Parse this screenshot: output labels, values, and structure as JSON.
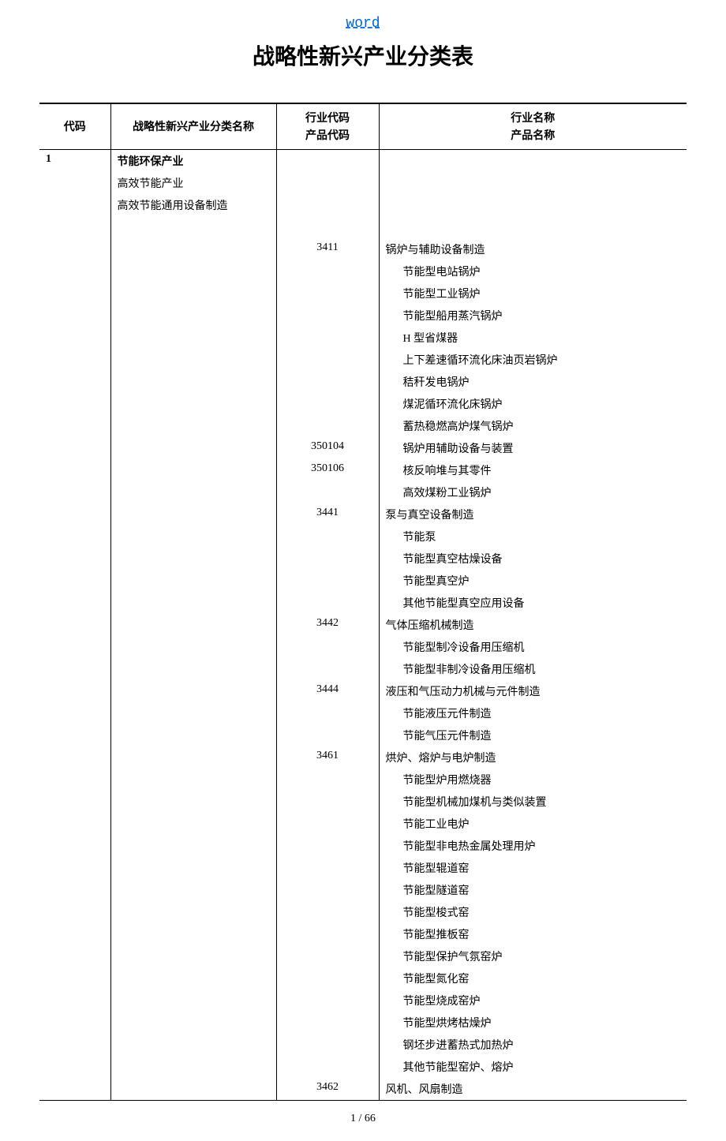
{
  "header_link": "word",
  "title": "战略性新兴产业分类表",
  "headers": {
    "code": "代码",
    "category_name": "战略性新兴产业分类名称",
    "industry_code_line1": "行业代码",
    "industry_code_line2": "产品代码",
    "industry_name_line1": "行业名称",
    "industry_name_line2": "产品名称"
  },
  "rows": [
    {
      "code": "1",
      "category": "节能环保产业",
      "category_bold": true,
      "industry_code": "",
      "industry_name": "",
      "indent": 0
    },
    {
      "code": "",
      "category": "高效节能产业",
      "category_bold": false,
      "industry_code": "",
      "industry_name": "",
      "indent": 0
    },
    {
      "code": "",
      "category": "高效节能通用设备制造",
      "category_bold": false,
      "industry_code": "",
      "industry_name": "",
      "indent": 0
    },
    {
      "code": "",
      "category": "",
      "category_bold": false,
      "industry_code": "",
      "industry_name": "",
      "indent": 0
    },
    {
      "code": "",
      "category": "",
      "category_bold": false,
      "industry_code": "3411",
      "industry_name": "锅炉与辅助设备制造",
      "indent": 0
    },
    {
      "code": "",
      "category": "",
      "category_bold": false,
      "industry_code": "",
      "industry_name": "节能型电站锅炉",
      "indent": 1
    },
    {
      "code": "",
      "category": "",
      "category_bold": false,
      "industry_code": "",
      "industry_name": "节能型工业锅炉",
      "indent": 1
    },
    {
      "code": "",
      "category": "",
      "category_bold": false,
      "industry_code": "",
      "industry_name": "节能型船用蒸汽锅炉",
      "indent": 1
    },
    {
      "code": "",
      "category": "",
      "category_bold": false,
      "industry_code": "",
      "industry_name": "H 型省煤器",
      "indent": 1
    },
    {
      "code": "",
      "category": "",
      "category_bold": false,
      "industry_code": "",
      "industry_name": "上下差速循环流化床油页岩锅炉",
      "indent": 1
    },
    {
      "code": "",
      "category": "",
      "category_bold": false,
      "industry_code": "",
      "industry_name": "秸秆发电锅炉",
      "indent": 1
    },
    {
      "code": "",
      "category": "",
      "category_bold": false,
      "industry_code": "",
      "industry_name": "煤泥循环流化床锅炉",
      "indent": 1
    },
    {
      "code": "",
      "category": "",
      "category_bold": false,
      "industry_code": "",
      "industry_name": "蓄热稳燃高炉煤气锅炉",
      "indent": 1
    },
    {
      "code": "",
      "category": "",
      "category_bold": false,
      "industry_code": "350104",
      "industry_name": "锅炉用辅助设备与装置",
      "indent": 1
    },
    {
      "code": "",
      "category": "",
      "category_bold": false,
      "industry_code": "350106",
      "industry_name": "核反响堆与其零件",
      "indent": 1
    },
    {
      "code": "",
      "category": "",
      "category_bold": false,
      "industry_code": "",
      "industry_name": "高效煤粉工业锅炉",
      "indent": 1
    },
    {
      "code": "",
      "category": "",
      "category_bold": false,
      "industry_code": "3441",
      "industry_name": "泵与真空设备制造",
      "indent": 0
    },
    {
      "code": "",
      "category": "",
      "category_bold": false,
      "industry_code": "",
      "industry_name": "节能泵",
      "indent": 1
    },
    {
      "code": "",
      "category": "",
      "category_bold": false,
      "industry_code": "",
      "industry_name": "节能型真空枯燥设备",
      "indent": 1
    },
    {
      "code": "",
      "category": "",
      "category_bold": false,
      "industry_code": "",
      "industry_name": "节能型真空炉",
      "indent": 1
    },
    {
      "code": "",
      "category": "",
      "category_bold": false,
      "industry_code": "",
      "industry_name": "其他节能型真空应用设备",
      "indent": 1
    },
    {
      "code": "",
      "category": "",
      "category_bold": false,
      "industry_code": "3442",
      "industry_name": "气体压缩机械制造",
      "indent": 0
    },
    {
      "code": "",
      "category": "",
      "category_bold": false,
      "industry_code": "",
      "industry_name": "节能型制冷设备用压缩机",
      "indent": 1
    },
    {
      "code": "",
      "category": "",
      "category_bold": false,
      "industry_code": "",
      "industry_name": "节能型非制冷设备用压缩机",
      "indent": 1
    },
    {
      "code": "",
      "category": "",
      "category_bold": false,
      "industry_code": "3444",
      "industry_name": "液压和气压动力机械与元件制造",
      "indent": 0
    },
    {
      "code": "",
      "category": "",
      "category_bold": false,
      "industry_code": "",
      "industry_name": "节能液压元件制造",
      "indent": 1
    },
    {
      "code": "",
      "category": "",
      "category_bold": false,
      "industry_code": "",
      "industry_name": "节能气压元件制造",
      "indent": 1
    },
    {
      "code": "",
      "category": "",
      "category_bold": false,
      "industry_code": "3461",
      "industry_name": "烘炉、熔炉与电炉制造",
      "indent": 0
    },
    {
      "code": "",
      "category": "",
      "category_bold": false,
      "industry_code": "",
      "industry_name": "节能型炉用燃烧器",
      "indent": 1
    },
    {
      "code": "",
      "category": "",
      "category_bold": false,
      "industry_code": "",
      "industry_name": "节能型机械加煤机与类似装置",
      "indent": 1
    },
    {
      "code": "",
      "category": "",
      "category_bold": false,
      "industry_code": "",
      "industry_name": "节能工业电炉",
      "indent": 1
    },
    {
      "code": "",
      "category": "",
      "category_bold": false,
      "industry_code": "",
      "industry_name": "节能型非电热金属处理用炉",
      "indent": 1
    },
    {
      "code": "",
      "category": "",
      "category_bold": false,
      "industry_code": "",
      "industry_name": "节能型辊道窑",
      "indent": 1
    },
    {
      "code": "",
      "category": "",
      "category_bold": false,
      "industry_code": "",
      "industry_name": "节能型隧道窑",
      "indent": 1
    },
    {
      "code": "",
      "category": "",
      "category_bold": false,
      "industry_code": "",
      "industry_name": "节能型梭式窑",
      "indent": 1
    },
    {
      "code": "",
      "category": "",
      "category_bold": false,
      "industry_code": "",
      "industry_name": "节能型推板窑",
      "indent": 1
    },
    {
      "code": "",
      "category": "",
      "category_bold": false,
      "industry_code": "",
      "industry_name": "节能型保护气氛窑炉",
      "indent": 1
    },
    {
      "code": "",
      "category": "",
      "category_bold": false,
      "industry_code": "",
      "industry_name": "节能型氮化窑",
      "indent": 1
    },
    {
      "code": "",
      "category": "",
      "category_bold": false,
      "industry_code": "",
      "industry_name": "节能型烧成窑炉",
      "indent": 1
    },
    {
      "code": "",
      "category": "",
      "category_bold": false,
      "industry_code": "",
      "industry_name": "节能型烘烤枯燥炉",
      "indent": 1
    },
    {
      "code": "",
      "category": "",
      "category_bold": false,
      "industry_code": "",
      "industry_name": "钢坯步进蓄热式加热炉",
      "indent": 1
    },
    {
      "code": "",
      "category": "",
      "category_bold": false,
      "industry_code": "",
      "industry_name": "其他节能型窑炉、熔炉",
      "indent": 1
    },
    {
      "code": "",
      "category": "",
      "category_bold": false,
      "industry_code": "3462",
      "industry_name": "风机、风扇制造",
      "indent": 0
    }
  ],
  "page_number": "1 / 66"
}
